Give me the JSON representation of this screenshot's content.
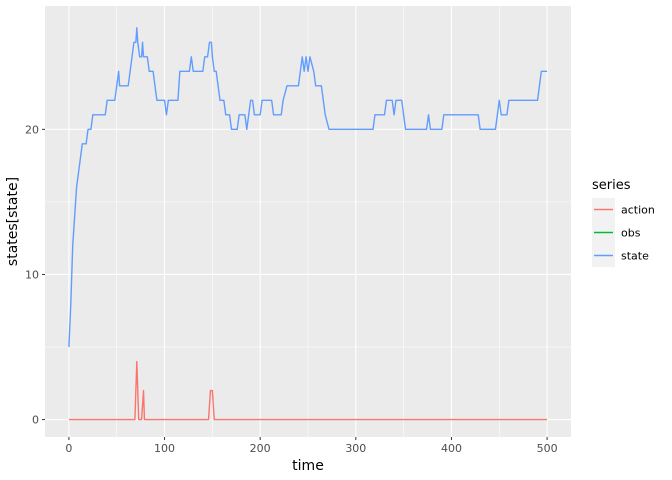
{
  "chart_data": {
    "type": "line",
    "xlabel": "time",
    "ylabel": "states[state]",
    "xlim": [
      -25,
      525
    ],
    "ylim": [
      -1.2,
      28.5
    ],
    "x_ticks": [
      0,
      100,
      200,
      300,
      400,
      500
    ],
    "x_tick_labels": [
      "0",
      "100",
      "200",
      "300",
      "400",
      "500"
    ],
    "y_ticks": [
      0,
      10,
      20
    ],
    "y_tick_labels": [
      "0",
      "10",
      "20"
    ],
    "grid": true,
    "legend_title": "series",
    "legend_position": "right",
    "series": [
      {
        "name": "action",
        "color": "#F8766D",
        "points": [
          [
            0,
            0
          ],
          [
            69,
            0
          ],
          [
            71,
            4
          ],
          [
            73,
            0
          ],
          [
            76,
            0
          ],
          [
            78,
            2
          ],
          [
            79,
            0
          ],
          [
            146,
            0
          ],
          [
            148,
            2
          ],
          [
            150,
            2
          ],
          [
            152,
            0
          ],
          [
            500,
            0
          ]
        ]
      },
      {
        "name": "obs",
        "color": "#00BA38",
        "points": []
      },
      {
        "name": "state",
        "color": "#619CFF",
        "points": [
          [
            0,
            5
          ],
          [
            2,
            8
          ],
          [
            4,
            12
          ],
          [
            6,
            14
          ],
          [
            8,
            16
          ],
          [
            10,
            17
          ],
          [
            12,
            18
          ],
          [
            14,
            19
          ],
          [
            18,
            19
          ],
          [
            20,
            20
          ],
          [
            23,
            20
          ],
          [
            25,
            21
          ],
          [
            38,
            21
          ],
          [
            40,
            22
          ],
          [
            48,
            22
          ],
          [
            50,
            23
          ],
          [
            52,
            24
          ],
          [
            53,
            23
          ],
          [
            62,
            23
          ],
          [
            64,
            24
          ],
          [
            66,
            25
          ],
          [
            68,
            26
          ],
          [
            70,
            26
          ],
          [
            71,
            27
          ],
          [
            72,
            26
          ],
          [
            74,
            25
          ],
          [
            76,
            25
          ],
          [
            77,
            26
          ],
          [
            78,
            25
          ],
          [
            82,
            25
          ],
          [
            84,
            24
          ],
          [
            88,
            24
          ],
          [
            90,
            23
          ],
          [
            92,
            22
          ],
          [
            100,
            22
          ],
          [
            102,
            21
          ],
          [
            104,
            22
          ],
          [
            114,
            22
          ],
          [
            116,
            24
          ],
          [
            126,
            24
          ],
          [
            128,
            25
          ],
          [
            130,
            24
          ],
          [
            140,
            24
          ],
          [
            142,
            25
          ],
          [
            145,
            25
          ],
          [
            147,
            26
          ],
          [
            149,
            26
          ],
          [
            150,
            25
          ],
          [
            152,
            24
          ],
          [
            154,
            24
          ],
          [
            156,
            23
          ],
          [
            158,
            22
          ],
          [
            162,
            22
          ],
          [
            164,
            21
          ],
          [
            168,
            21
          ],
          [
            170,
            20
          ],
          [
            176,
            20
          ],
          [
            178,
            21
          ],
          [
            184,
            21
          ],
          [
            186,
            20
          ],
          [
            188,
            21
          ],
          [
            190,
            22
          ],
          [
            192,
            22
          ],
          [
            194,
            21
          ],
          [
            200,
            21
          ],
          [
            202,
            22
          ],
          [
            212,
            22
          ],
          [
            214,
            21
          ],
          [
            222,
            21
          ],
          [
            224,
            22
          ],
          [
            228,
            23
          ],
          [
            240,
            23
          ],
          [
            242,
            24
          ],
          [
            244,
            25
          ],
          [
            246,
            24
          ],
          [
            248,
            25
          ],
          [
            250,
            24
          ],
          [
            252,
            25
          ],
          [
            256,
            24
          ],
          [
            258,
            23
          ],
          [
            264,
            23
          ],
          [
            266,
            22
          ],
          [
            268,
            21
          ],
          [
            272,
            20
          ],
          [
            274,
            20
          ],
          [
            276,
            20
          ],
          [
            318,
            20
          ],
          [
            320,
            21
          ],
          [
            330,
            21
          ],
          [
            332,
            22
          ],
          [
            338,
            22
          ],
          [
            340,
            21
          ],
          [
            342,
            22
          ],
          [
            348,
            22
          ],
          [
            350,
            21
          ],
          [
            352,
            20
          ],
          [
            374,
            20
          ],
          [
            376,
            21
          ],
          [
            378,
            20
          ],
          [
            390,
            20
          ],
          [
            392,
            21
          ],
          [
            428,
            21
          ],
          [
            430,
            20
          ],
          [
            446,
            20
          ],
          [
            448,
            21
          ],
          [
            450,
            22
          ],
          [
            452,
            21
          ],
          [
            458,
            21
          ],
          [
            460,
            22
          ],
          [
            490,
            22
          ],
          [
            492,
            23
          ],
          [
            494,
            24
          ],
          [
            500,
            24
          ]
        ]
      }
    ]
  }
}
